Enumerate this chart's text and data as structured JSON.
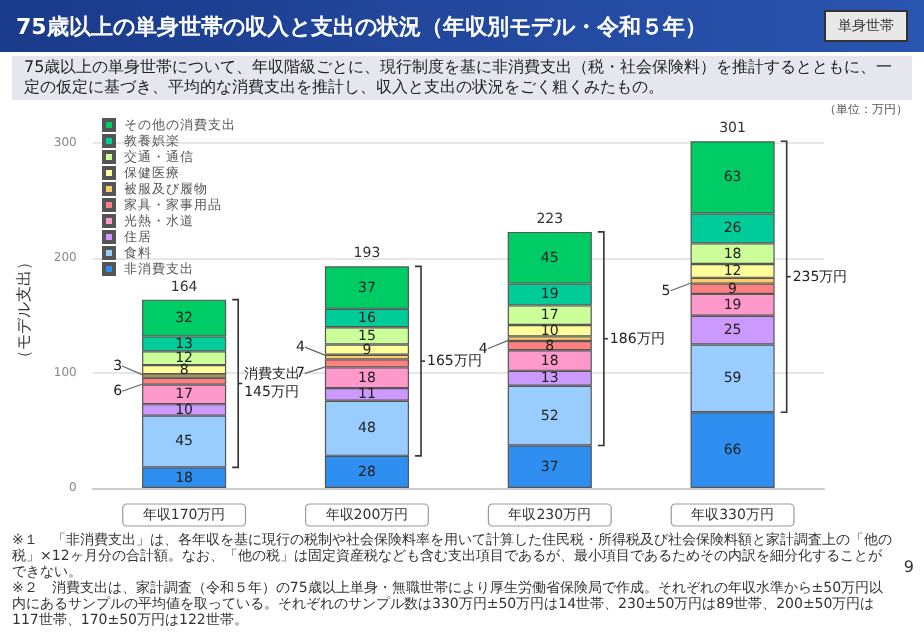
{
  "chart_data": {
    "type": "bar",
    "stacked": true,
    "title": "75歳以上の単身世帯の収入と支出の状況（年収別モデル・令和５年）",
    "subtitle": "75歳以上の単身世帯について、年収階級ごとに、現行制度を基に非消費支出（税・社会保険料）を推計するとともに、一定の仮定に基づき、平均的な消費支出を推計し、収入と支出の状況をごく粗くみたもの。",
    "ylabel": "（モデル支出）",
    "categories": [
      "年収170万円",
      "年収200万円",
      "年収230万円",
      "年収330万円"
    ],
    "series": [
      {
        "name": "非消費支出",
        "color": "#2e8ff0",
        "values": [
          18,
          28,
          37,
          66
        ]
      },
      {
        "name": "食料",
        "color": "#99ccff",
        "values": [
          45,
          48,
          52,
          59
        ]
      },
      {
        "name": "住居",
        "color": "#cc99ff",
        "values": [
          10,
          11,
          13,
          25
        ]
      },
      {
        "name": "光熱・水道",
        "color": "#ff99cc",
        "values": [
          17,
          18,
          18,
          19
        ]
      },
      {
        "name": "家具・家事用品",
        "color": "#ff8080",
        "values": [
          6,
          7,
          8,
          9
        ]
      },
      {
        "name": "被服及び履物",
        "color": "#ffcc66",
        "values": [
          3,
          4,
          4,
          5
        ]
      },
      {
        "name": "保健医療",
        "color": "#ffff99",
        "values": [
          8,
          9,
          10,
          12
        ]
      },
      {
        "name": "交通・通信",
        "color": "#ccff99",
        "values": [
          12,
          15,
          17,
          18
        ]
      },
      {
        "name": "教養娯楽",
        "color": "#00cc99",
        "values": [
          13,
          16,
          19,
          26
        ]
      },
      {
        "name": "その他の消費支出",
        "color": "#00cc66",
        "values": [
          32,
          37,
          45,
          63
        ]
      }
    ],
    "totals": [
      "164",
      "193",
      "223",
      "301"
    ],
    "data_labels": true,
    "ylim": [
      0,
      310
    ],
    "yticks": [
      0,
      100,
      200,
      300
    ],
    "grid": "y",
    "legend": "top left",
    "annotations": [
      "単身世帯",
      "（単位：万円）",
      "※１　「非消費支出」は、各年収を基に現行の税制や社会保険料率を用いて計算した住民税・所得税及び社会保険料額と家計調査上の「他の税」×12ヶ月分の合計額。なお、「他の税」は固定資産税なども含む支出項目であるが、最小項目であるためその内訳を細分化することができない。",
      "※２　消費支出は、家計調査（令和５年）の75歳以上単身・無職世帯により厚生労働省保険局で作成。それぞれの年収水準から±50万円以内にあるサンプルの平均値を取っている。それぞれのサンプル数は330万円±50万円は14世帯、230±50万円は89世帯、200±50万円は117世帯、170±50万円は122世帯。",
      "9",
      "消費支出\n145万円",
      "165万円",
      "186万円",
      "235万円"
    ]
  }
}
